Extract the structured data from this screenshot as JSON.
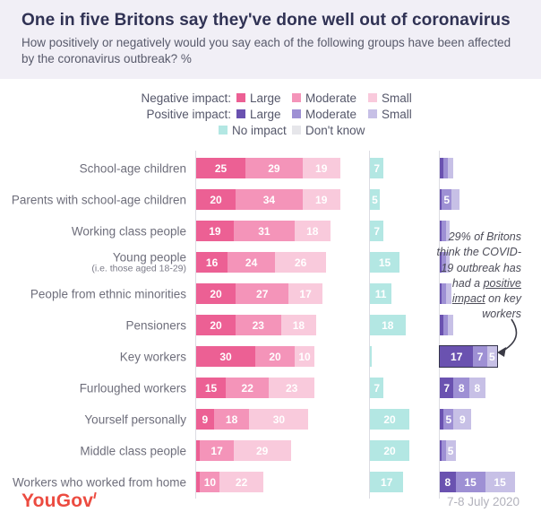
{
  "header": {
    "title": "One in five Britons say they've done well out of coronavirus",
    "subtitle": "How positively or negatively would you say each of the following groups have been affected by the coronavirus outbreak? %"
  },
  "colors": {
    "neg_large": "#ec6094",
    "neg_moderate": "#f494b9",
    "neg_small": "#f9cadc",
    "pos_large": "#6a52b0",
    "pos_moderate": "#9e90d4",
    "pos_small": "#c7c0e6",
    "no_impact": "#b3e7e3",
    "dont_know": "#e6e6ea"
  },
  "legend": {
    "rows": [
      {
        "label": "Negative impact:",
        "items": [
          {
            "label": "Large",
            "color_key": "neg_large"
          },
          {
            "label": "Moderate",
            "color_key": "neg_moderate"
          },
          {
            "label": "Small",
            "color_key": "neg_small"
          }
        ]
      },
      {
        "label": "Positive impact:",
        "items": [
          {
            "label": "Large",
            "color_key": "pos_large"
          },
          {
            "label": "Moderate",
            "color_key": "pos_moderate"
          },
          {
            "label": "Small",
            "color_key": "pos_small"
          }
        ]
      },
      {
        "label": "",
        "items": [
          {
            "label": "No impact",
            "color_key": "no_impact"
          },
          {
            "label": "Don't know",
            "color_key": "dont_know"
          }
        ]
      }
    ]
  },
  "chart_data": {
    "type": "bar",
    "orientation": "horizontal-stacked",
    "unit": "%",
    "title": "One in five Britons say they've done well out of coronavirus",
    "series_labels": [
      "Negative impact: Large",
      "Negative impact: Moderate",
      "Negative impact: Small",
      "No impact",
      "Positive impact: Large",
      "Positive impact: Moderate",
      "Positive impact: Small",
      "Don't know"
    ],
    "label_min_value": 5,
    "rows": [
      {
        "label": "School-age children",
        "sublabel": "",
        "negative": [
          25,
          29,
          19
        ],
        "no_impact": 7,
        "positive": [
          2,
          2,
          3
        ],
        "highlight_positive": false
      },
      {
        "label": "Parents with school-age children",
        "sublabel": "",
        "negative": [
          20,
          34,
          19
        ],
        "no_impact": 5,
        "positive": [
          1,
          5,
          4
        ],
        "highlight_positive": false
      },
      {
        "label": "Working class people",
        "sublabel": "",
        "negative": [
          19,
          31,
          18
        ],
        "no_impact": 7,
        "positive": [
          1,
          2,
          2
        ],
        "highlight_positive": false
      },
      {
        "label": "Young people",
        "sublabel": "(i.e. those aged 18-29)",
        "negative": [
          16,
          24,
          26
        ],
        "no_impact": 15,
        "positive": [
          1,
          2,
          2
        ],
        "highlight_positive": false
      },
      {
        "label": "People from ethnic minorities",
        "sublabel": "",
        "negative": [
          20,
          27,
          17
        ],
        "no_impact": 11,
        "positive": [
          1,
          2,
          3
        ],
        "highlight_positive": false
      },
      {
        "label": "Pensioners",
        "sublabel": "",
        "negative": [
          20,
          23,
          18
        ],
        "no_impact": 18,
        "positive": [
          2,
          2,
          3
        ],
        "highlight_positive": false
      },
      {
        "label": "Key workers",
        "sublabel": "",
        "negative": [
          30,
          20,
          10
        ],
        "no_impact": 1,
        "positive": [
          17,
          7,
          5
        ],
        "highlight_positive": true
      },
      {
        "label": "Furloughed workers",
        "sublabel": "",
        "negative": [
          15,
          22,
          23
        ],
        "no_impact": 7,
        "positive": [
          7,
          8,
          8
        ],
        "highlight_positive": false
      },
      {
        "label": "Yourself personally",
        "sublabel": "",
        "negative": [
          9,
          18,
          30
        ],
        "no_impact": 20,
        "positive": [
          2,
          5,
          9
        ],
        "highlight_positive": false
      },
      {
        "label": "Middle class people",
        "sublabel": "",
        "negative": [
          2,
          17,
          29
        ],
        "no_impact": 20,
        "positive": [
          1,
          2,
          5
        ],
        "highlight_positive": false
      },
      {
        "label": "Workers who worked from home",
        "sublabel": "",
        "negative": [
          2,
          10,
          22
        ],
        "no_impact": 17,
        "positive": [
          8,
          15,
          15
        ],
        "highlight_positive": false
      }
    ]
  },
  "annotation": {
    "before": "29% of Britons think the COVID-19 outbreak has had a ",
    "underlined": "positive impact",
    "after": " on key workers"
  },
  "footer": {
    "logo": "YouGov",
    "date": "7-8 July 2020"
  }
}
